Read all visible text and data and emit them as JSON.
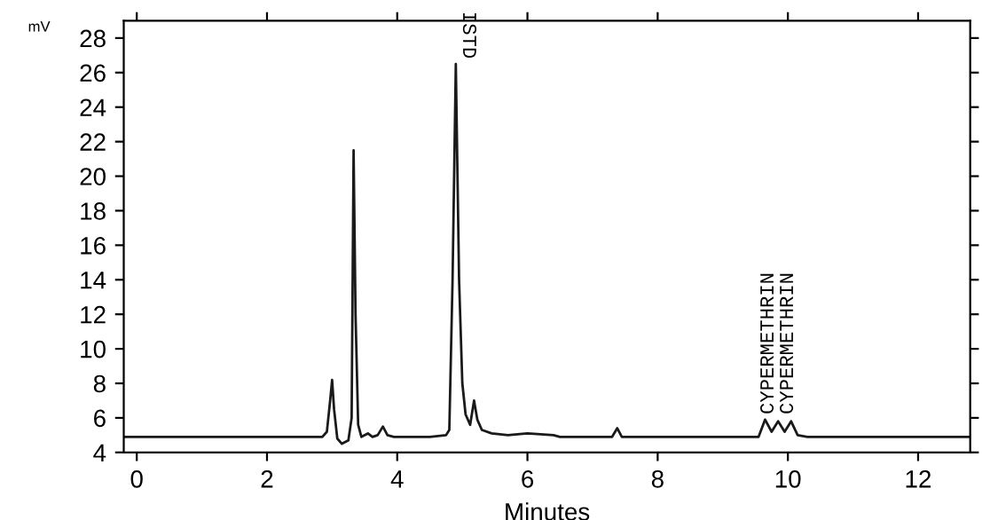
{
  "chart_data": {
    "type": "line",
    "xlabel": "Minutes",
    "ylabel": "mV",
    "series": [
      {
        "color": "#1a1a1a",
        "x": [
          -0.2,
          2.85,
          2.92,
          2.97,
          3.0,
          3.03,
          3.08,
          3.15,
          3.25,
          3.3,
          3.33,
          3.36,
          3.4,
          3.45,
          3.55,
          3.62,
          3.7,
          3.78,
          3.85,
          3.95,
          4.5,
          4.75,
          4.8,
          4.85,
          4.9,
          4.95,
          5.0,
          5.05,
          5.12,
          5.18,
          5.23,
          5.3,
          5.45,
          5.7,
          6.0,
          6.4,
          6.5,
          6.6,
          7.3,
          7.38,
          7.45,
          7.6,
          9.55,
          9.65,
          9.75,
          9.85,
          9.95,
          10.05,
          10.15,
          10.3,
          12.8
        ],
        "values": [
          4.9,
          4.9,
          5.2,
          7.0,
          8.2,
          6.5,
          4.8,
          4.5,
          4.7,
          6.0,
          21.5,
          12.0,
          5.6,
          4.9,
          5.1,
          4.9,
          5.0,
          5.5,
          5.0,
          4.9,
          4.9,
          5.0,
          5.3,
          14.0,
          26.5,
          14.0,
          8.0,
          6.2,
          5.6,
          7.0,
          5.9,
          5.3,
          5.1,
          5.0,
          5.1,
          5.0,
          4.9,
          4.9,
          4.9,
          5.4,
          4.9,
          4.9,
          4.9,
          5.9,
          5.2,
          5.8,
          5.2,
          5.8,
          5.0,
          4.9,
          4.9
        ]
      }
    ],
    "xlim": [
      -0.2,
      12.8
    ],
    "xticks": [
      0,
      2,
      4,
      6,
      8,
      10,
      12
    ],
    "ylim": [
      4,
      29
    ],
    "yticks": [
      4,
      6,
      8,
      10,
      12,
      14,
      16,
      18,
      20,
      22,
      24,
      26,
      28
    ],
    "annotations": [
      {
        "text": "ISTD",
        "x": 4.95,
        "y": 26.5
      },
      {
        "text": "CYPERMETHRIN",
        "x": 9.7,
        "y": 6.2
      },
      {
        "text": "CYPERMETHRIN",
        "x": 10.0,
        "y": 6.2
      }
    ],
    "grid": false,
    "legend": false,
    "marker": "none",
    "line_style": "solid"
  }
}
